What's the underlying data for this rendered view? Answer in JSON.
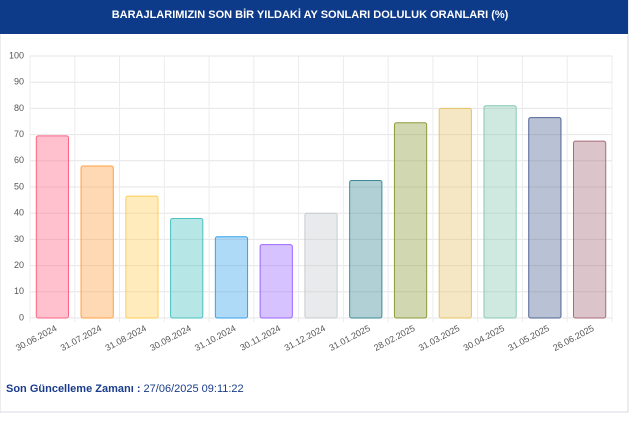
{
  "chart_data": {
    "type": "bar",
    "title": "BARAJLARIMIZIN SON BİR YILDAKİ AY SONLARI DOLULUK ORANLARI (%)",
    "categories": [
      "30.06.2024",
      "31.07.2024",
      "31.08.2024",
      "30.09.2024",
      "31.10.2024",
      "30.11.2024",
      "31.12.2024",
      "31.01.2025",
      "28.02.2025",
      "31.03.2025",
      "30.04.2025",
      "31.05.2025",
      "26.06.2025"
    ],
    "values": [
      69.5,
      58,
      46.5,
      38,
      31,
      28,
      40,
      52.5,
      74.5,
      80,
      81,
      76.5,
      67.5
    ],
    "colors": [
      "#ff6384",
      "#ff9f40",
      "#ffcd56",
      "#4bc0c0",
      "#36a2eb",
      "#9966ff",
      "#c9cbcf",
      "#3b8a96",
      "#8c9b3a",
      "#e6c36a",
      "#86c9b4",
      "#4f6394",
      "#a86b7c"
    ],
    "ylim": [
      0,
      100
    ],
    "yticks": [
      0,
      10,
      20,
      30,
      40,
      50,
      60,
      70,
      80,
      90,
      100
    ],
    "grid": true
  },
  "footer": {
    "label": "Son Güncelleme Zamanı :",
    "value": "27/06/2025 09:11:22"
  }
}
